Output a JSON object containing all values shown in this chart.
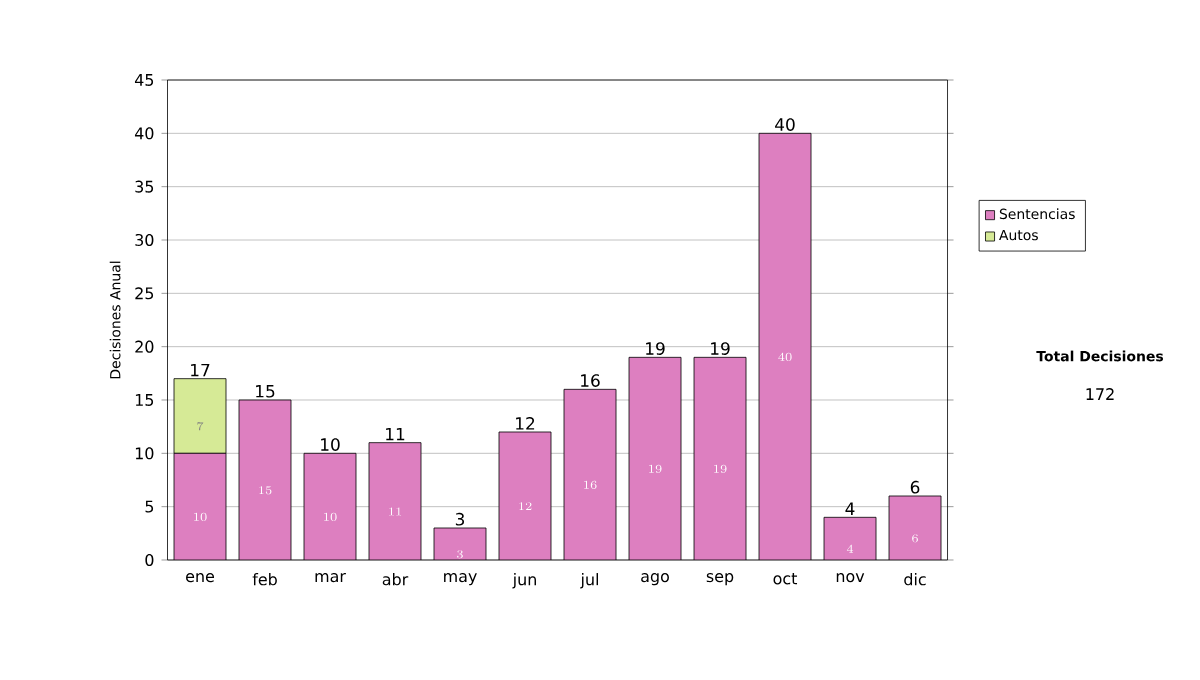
{
  "chart_data": {
    "type": "bar",
    "stacked": true,
    "ylabel": "Decisiones Anual",
    "categories": [
      "ene",
      "feb",
      "mar",
      "abr",
      "may",
      "jun",
      "jul",
      "ago",
      "sep",
      "oct",
      "nov",
      "dic"
    ],
    "series": [
      {
        "name": "Sentencias",
        "color": "#dd7fc0",
        "values": [
          10,
          15,
          10,
          11,
          3,
          12,
          16,
          19,
          19,
          40,
          4,
          6
        ]
      },
      {
        "name": "Autos",
        "color": "#d6ea96",
        "values": [
          7,
          null,
          null,
          null,
          null,
          null,
          null,
          null,
          null,
          null,
          null,
          null
        ]
      }
    ],
    "totals": [
      "17",
      "15",
      "10",
      "11",
      "3",
      "12",
      "16",
      "19",
      "19",
      "40",
      "4",
      "6"
    ],
    "data_labels": true,
    "ylim": [
      0,
      45
    ],
    "yticks": [
      0,
      5,
      10,
      15,
      20,
      25,
      30,
      35,
      40,
      45
    ],
    "grid": "y",
    "legend": "right",
    "annotations": [
      "Total Decisiones",
      "172"
    ]
  }
}
